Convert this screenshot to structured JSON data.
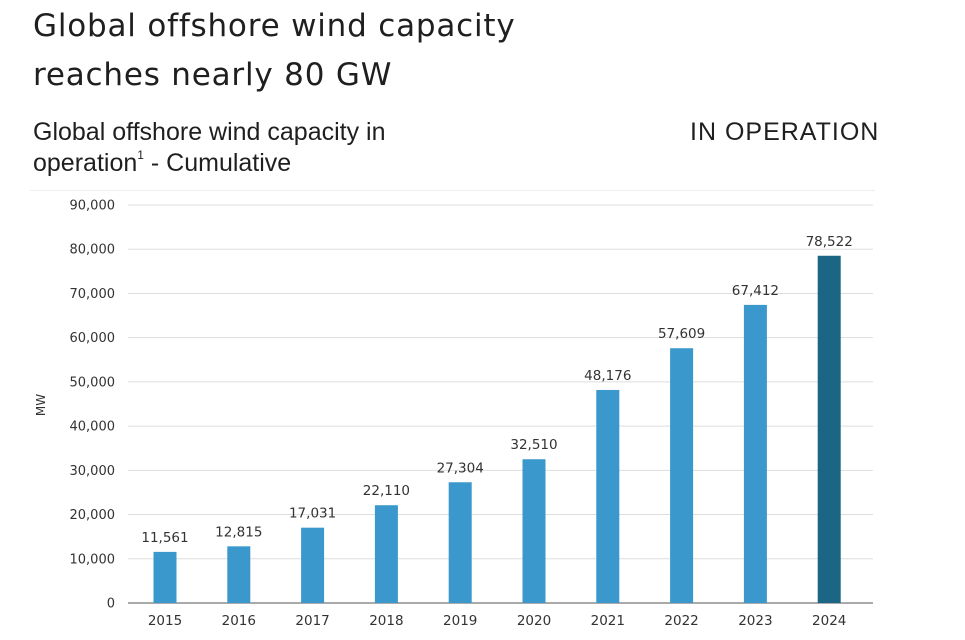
{
  "headline": {
    "line1": "Global offshore wind capacity",
    "line2": "reaches nearly 80 GW"
  },
  "subtitle": {
    "text": "Global offshore wind capacity in operation",
    "footnote_marker": "1",
    "suffix": " - Cumulative"
  },
  "status_label": "IN OPERATION",
  "colors": {
    "bar": "#3a98cc",
    "bar_highlight": "#1b6585",
    "grid": "#dddddd",
    "axis": "#555555"
  },
  "chart_data": {
    "type": "bar",
    "title": "Global offshore wind capacity in operation - Cumulative",
    "xlabel": "",
    "ylabel": "MW",
    "ylim": [
      0,
      90000
    ],
    "yticks": [
      "0",
      "10,000",
      "20,000",
      "30,000",
      "40,000",
      "50,000",
      "60,000",
      "70,000",
      "80,000",
      "90,000"
    ],
    "ytick_values": [
      0,
      10000,
      20000,
      30000,
      40000,
      50000,
      60000,
      70000,
      80000,
      90000
    ],
    "grid": true,
    "categories": [
      "2015",
      "2016",
      "2017",
      "2018",
      "2019",
      "2020",
      "2021",
      "2022",
      "2023",
      "2024"
    ],
    "values": [
      11561,
      12815,
      17031,
      22110,
      27304,
      32510,
      48176,
      57609,
      67412,
      78522
    ],
    "data_labels": [
      "11,561",
      "12,815",
      "17,031",
      "22,110",
      "27,304",
      "32,510",
      "48,176",
      "57,609",
      "67,412",
      "78,522"
    ],
    "highlight_index": 9
  }
}
